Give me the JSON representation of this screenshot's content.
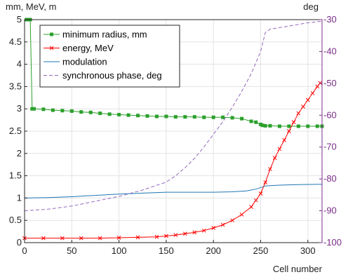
{
  "chart_data": {
    "type": "line",
    "xlabel": "Cell number",
    "ylabel_left": "mm, MeV, m",
    "ylabel_right": "deg",
    "xlim": [
      0,
      315
    ],
    "ylim_left": [
      0,
      5
    ],
    "ylim_right": [
      -100,
      -30
    ],
    "xticks": [
      0,
      50,
      100,
      150,
      200,
      250,
      300
    ],
    "yticks_left": [
      0,
      0.5,
      1,
      1.5,
      2,
      2.5,
      3,
      3.5,
      4,
      4.5,
      5
    ],
    "yticks_left_labels": [
      "0",
      "0.5",
      "1",
      "1.5",
      "2",
      "2.5",
      "3",
      "3.5",
      "4",
      "4.5",
      "5"
    ],
    "yticks_right": [
      -100,
      -90,
      -80,
      -70,
      -60,
      -50,
      -40,
      -30
    ],
    "grid": true,
    "legend_position": "top-left",
    "series": [
      {
        "name": "minimum radius, mm",
        "axis": "left",
        "color": "#2ca02c",
        "marker": "square",
        "x": [
          2,
          3,
          4,
          5,
          6,
          8,
          10,
          20,
          30,
          40,
          50,
          60,
          70,
          80,
          90,
          100,
          110,
          120,
          130,
          140,
          150,
          160,
          170,
          180,
          190,
          200,
          210,
          220,
          230,
          240,
          245,
          250,
          252,
          255,
          260,
          270,
          280,
          290,
          300,
          310,
          315
        ],
        "y": [
          5,
          5,
          5,
          5,
          5,
          3.0,
          3.0,
          2.99,
          2.97,
          2.96,
          2.95,
          2.93,
          2.92,
          2.9,
          2.88,
          2.87,
          2.86,
          2.85,
          2.84,
          2.83,
          2.83,
          2.82,
          2.82,
          2.82,
          2.81,
          2.81,
          2.81,
          2.8,
          2.78,
          2.72,
          2.7,
          2.65,
          2.63,
          2.62,
          2.62,
          2.61,
          2.61,
          2.61,
          2.61,
          2.61,
          2.61
        ]
      },
      {
        "name": "energy, MeV",
        "axis": "left",
        "color": "#ff0000",
        "marker": "x",
        "x": [
          0,
          20,
          40,
          60,
          80,
          100,
          120,
          140,
          150,
          160,
          170,
          180,
          190,
          200,
          210,
          220,
          230,
          240,
          245,
          250,
          255,
          260,
          265,
          270,
          275,
          280,
          285,
          290,
          295,
          300,
          305,
          310,
          313
        ],
        "y": [
          0.1,
          0.1,
          0.1,
          0.1,
          0.1,
          0.11,
          0.12,
          0.13,
          0.15,
          0.17,
          0.2,
          0.23,
          0.27,
          0.33,
          0.4,
          0.5,
          0.63,
          0.8,
          0.95,
          1.1,
          1.35,
          1.65,
          1.9,
          2.1,
          2.3,
          2.5,
          2.7,
          2.9,
          3.05,
          3.2,
          3.35,
          3.5,
          3.58
        ]
      },
      {
        "name": "modulation",
        "axis": "left",
        "color": "#1f77b4",
        "marker": "none",
        "x": [
          0,
          25,
          50,
          75,
          100,
          125,
          150,
          175,
          200,
          220,
          235,
          245,
          255,
          270,
          290,
          315
        ],
        "y": [
          1.0,
          1.01,
          1.03,
          1.06,
          1.09,
          1.11,
          1.13,
          1.13,
          1.13,
          1.14,
          1.16,
          1.2,
          1.27,
          1.29,
          1.3,
          1.31
        ]
      },
      {
        "name": "synchronous phase, deg",
        "axis": "right",
        "color": "#9467bd",
        "marker": "none",
        "dash": "dashed",
        "x": [
          0,
          25,
          50,
          75,
          100,
          125,
          150,
          160,
          170,
          180,
          190,
          200,
          210,
          220,
          230,
          240,
          250,
          255,
          260,
          280,
          300,
          315
        ],
        "y": [
          -90,
          -89.5,
          -88.5,
          -87,
          -85.5,
          -83.5,
          -81,
          -79,
          -76.5,
          -73.5,
          -70,
          -66,
          -62,
          -57.5,
          -52.5,
          -47,
          -40,
          -34,
          -33,
          -32,
          -31,
          -30.5
        ]
      }
    ]
  }
}
